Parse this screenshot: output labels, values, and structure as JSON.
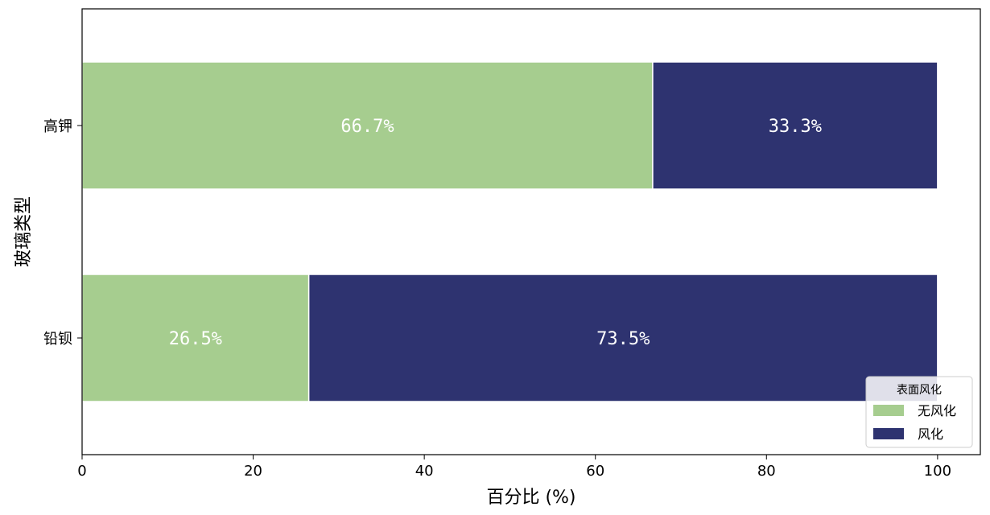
{
  "chart_data": {
    "type": "bar",
    "orientation": "horizontal",
    "stacked": true,
    "categories": [
      "高钾",
      "铅钡"
    ],
    "series": [
      {
        "name": "无风化",
        "values": [
          66.7,
          26.5
        ],
        "color": "#a6cd8f"
      },
      {
        "name": "风化",
        "values": [
          33.3,
          73.5
        ],
        "color": "#2e3370"
      }
    ],
    "data_labels": [
      [
        "66.7%",
        "26.5%"
      ],
      [
        "33.3%",
        "73.5%"
      ]
    ],
    "xlabel": "百分比 (%)",
    "ylabel": "玻璃类型",
    "xlim": [
      0,
      105
    ],
    "xticks": [
      0,
      20,
      40,
      60,
      80,
      100
    ],
    "grid": false,
    "legend": {
      "title": "表面风化",
      "placement": "lower-right"
    }
  }
}
